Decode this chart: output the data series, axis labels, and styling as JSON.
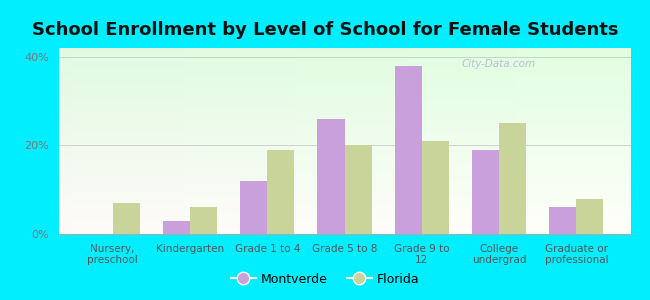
{
  "title": "School Enrollment by Level of School for Female Students",
  "categories": [
    "Nursery,\npreschool",
    "Kindergarten",
    "Grade 1 to 4",
    "Grade 5 to 8",
    "Grade 9 to\n12",
    "College\nundergrad",
    "Graduate or\nprofessional"
  ],
  "montverde": [
    0,
    3,
    12,
    26,
    38,
    19,
    6
  ],
  "florida": [
    7,
    6,
    19,
    20,
    21,
    25,
    8
  ],
  "montverde_color": "#c9a0dc",
  "florida_color": "#c8d49a",
  "bar_width": 0.35,
  "ylim": [
    0,
    42
  ],
  "yticks": [
    0,
    20,
    40
  ],
  "ytick_labels": [
    "0%",
    "20%",
    "40%"
  ],
  "background_color": "#00eeff",
  "title_fontsize": 13,
  "legend_labels": [
    "Montverde",
    "Florida"
  ],
  "watermark": "City-Data.com",
  "title_color": "#111111"
}
